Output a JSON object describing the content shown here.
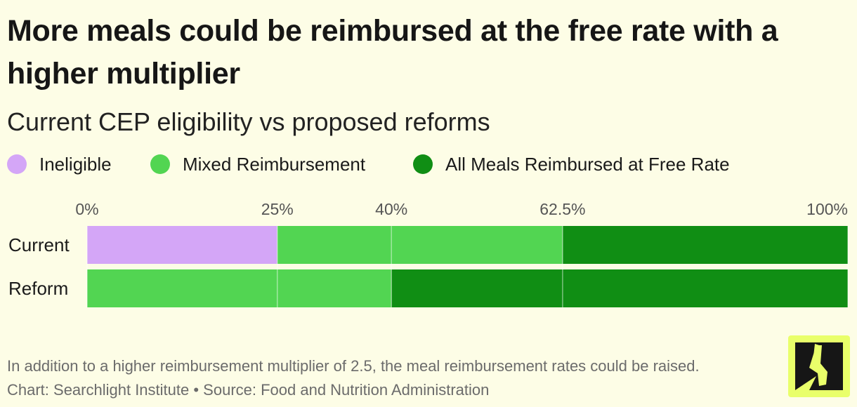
{
  "header": {
    "title": "More meals could be reimbursed at the free rate with a higher multiplier",
    "subtitle": "Current CEP eligibility vs proposed reforms"
  },
  "legend": [
    {
      "label": "Ineligible",
      "color": "#d4a6f7"
    },
    {
      "label": "Mixed Reimbursement",
      "color": "#52d552"
    },
    {
      "label": "All Meals Reimbursed at Free Rate",
      "color": "#108e14"
    }
  ],
  "chart_data": {
    "type": "bar",
    "orientation": "horizontal",
    "stacked": true,
    "categories": [
      "Current",
      "Reform"
    ],
    "series": [
      {
        "name": "Ineligible",
        "color": "#d4a6f7",
        "values": [
          25,
          0
        ]
      },
      {
        "name": "Mixed Reimbursement",
        "color": "#52d552",
        "values": [
          37.5,
          40
        ]
      },
      {
        "name": "All Meals Reimbursed at Free Rate",
        "color": "#108e14",
        "values": [
          37.5,
          60
        ]
      }
    ],
    "x_ticks": [
      0,
      25,
      40,
      62.5,
      100
    ],
    "x_tick_labels": [
      "0%",
      "25%",
      "40%",
      "62.5%",
      "100%"
    ],
    "xlim": [
      0,
      100
    ],
    "grid": true,
    "legend_position": "top-left"
  },
  "footer": {
    "note": "In addition to a higher reimbursement multiplier of 2.5, the meal reimbursement rates could be raised.",
    "credit": "Chart: Searchlight Institute • Source: Food and Nutrition Administration"
  },
  "logo": {
    "icon": "searchlight-figure-logo"
  }
}
